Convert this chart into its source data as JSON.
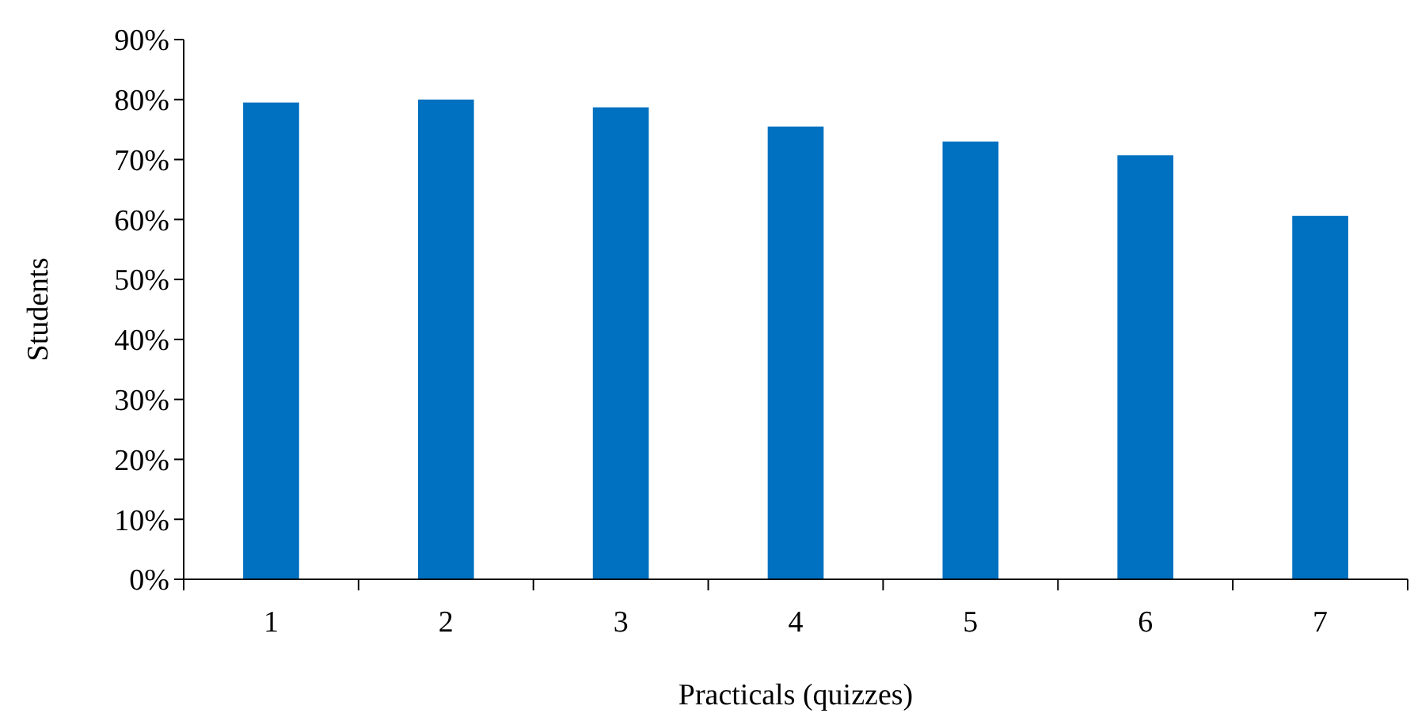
{
  "chart_data": {
    "type": "bar",
    "xlabel": "Practicals (quizzes)",
    "ylabel": "Students",
    "categories": [
      "1",
      "2",
      "3",
      "4",
      "5",
      "6",
      "7"
    ],
    "values": [
      79.5,
      80,
      78.7,
      75.5,
      73,
      70.7,
      60.6
    ],
    "color": "#0070c0",
    "ylim": [
      0,
      90
    ],
    "yticks": [
      {
        "value": 0,
        "label": "0%"
      },
      {
        "value": 10,
        "label": "10%"
      },
      {
        "value": 20,
        "label": "20%"
      },
      {
        "value": 30,
        "label": "30%"
      },
      {
        "value": 40,
        "label": "40%"
      },
      {
        "value": 50,
        "label": "50%"
      },
      {
        "value": 60,
        "label": "60%"
      },
      {
        "value": 70,
        "label": "70%"
      },
      {
        "value": 80,
        "label": "80%"
      },
      {
        "value": 90,
        "label": "90%"
      }
    ],
    "grid": false
  }
}
